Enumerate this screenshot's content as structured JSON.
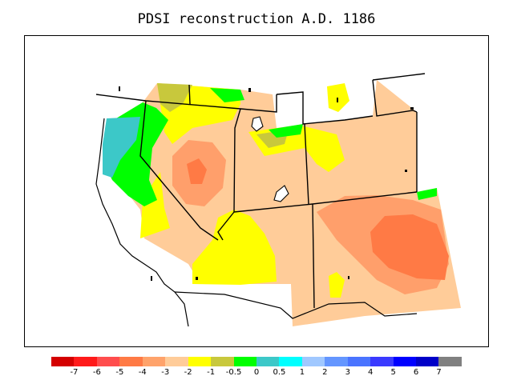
{
  "title": "PDSI reconstruction A.D. 1186",
  "legend": {
    "colors": [
      "#d40000",
      "#ff1a1a",
      "#ff4d4d",
      "#ff7a45",
      "#ffa36b",
      "#ffcc99",
      "#ffff00",
      "#c8c83c",
      "#00ff00",
      "#3cc8c8",
      "#00ffff",
      "#a0c8ff",
      "#6496ff",
      "#4a74ff",
      "#3a3aff",
      "#0000ff",
      "#0000c8",
      "#808080"
    ],
    "labels": [
      "-7",
      "-6",
      "-5",
      "-4",
      "-3",
      "-2",
      "-1",
      "-0.5",
      "0",
      "0.5",
      "1",
      "2",
      "3",
      "4",
      "5",
      "6",
      "7"
    ]
  }
}
